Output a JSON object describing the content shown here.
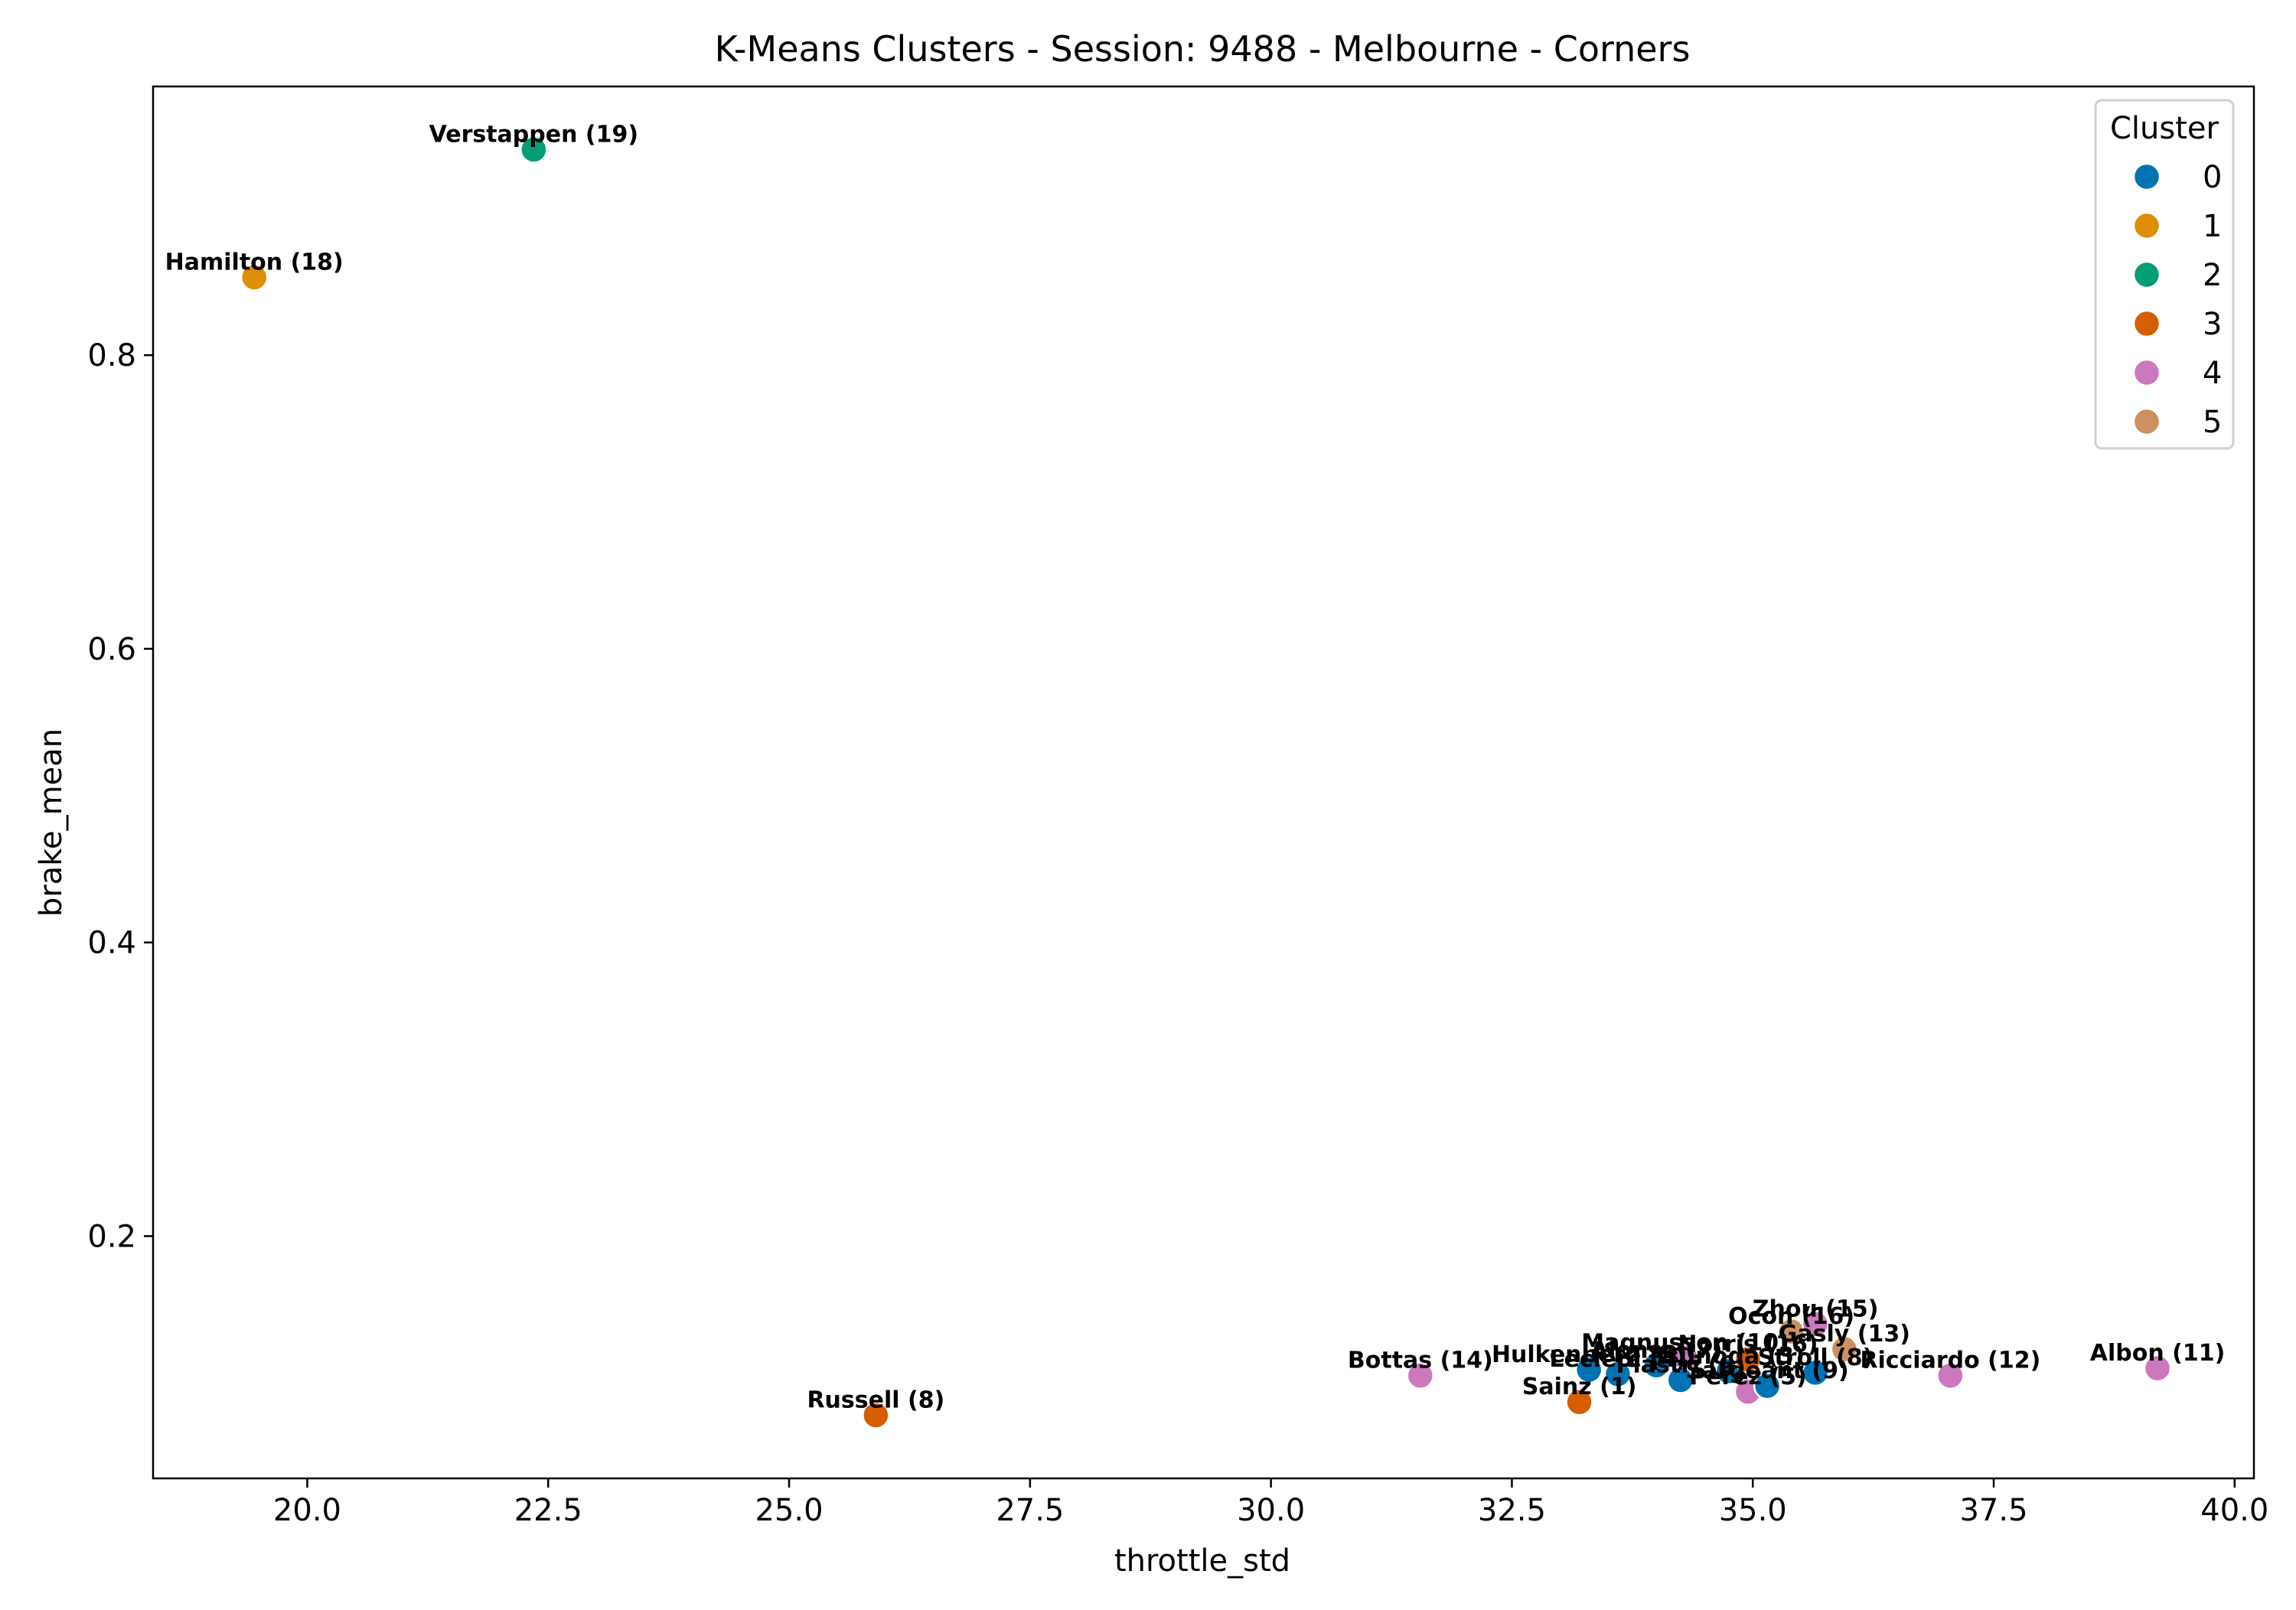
{
  "chart_data": {
    "type": "scatter",
    "title": "K-Means Clusters - Session: 9488 - Melbourne - Corners",
    "xlabel": "throttle_std",
    "ylabel": "brake_mean",
    "xlim": [
      18.4,
      40.2
    ],
    "ylim": [
      0.035,
      0.983
    ],
    "x_ticks": [
      20.0,
      22.5,
      25.0,
      27.5,
      30.0,
      32.5,
      35.0,
      37.5,
      40.0
    ],
    "x_tick_labels": [
      "20.0",
      "22.5",
      "25.0",
      "27.5",
      "30.0",
      "32.5",
      "35.0",
      "37.5",
      "40.0"
    ],
    "y_ticks": [
      0.2,
      0.4,
      0.6,
      0.8
    ],
    "y_tick_labels": [
      "0.2",
      "0.4",
      "0.6",
      "0.8"
    ],
    "grid": false,
    "legend": {
      "title": "Cluster",
      "placement": "top-right",
      "entries": [
        {
          "label": "0",
          "color": "#0173b2"
        },
        {
          "label": "1",
          "color": "#de8f05"
        },
        {
          "label": "2",
          "color": "#029e73"
        },
        {
          "label": "3",
          "color": "#d55e00"
        },
        {
          "label": "4",
          "color": "#cc78bc"
        },
        {
          "label": "5",
          "color": "#ca9161"
        }
      ]
    },
    "points": [
      {
        "label": "Verstappen (19)",
        "x": 22.35,
        "y": 0.94,
        "cluster": 2
      },
      {
        "label": "Hamilton (18)",
        "x": 19.45,
        "y": 0.853,
        "cluster": 1
      },
      {
        "label": "Russell (8)",
        "x": 25.9,
        "y": 0.078,
        "cluster": 3
      },
      {
        "label": "Bottas (14)",
        "x": 31.55,
        "y": 0.105,
        "cluster": 4
      },
      {
        "label": "Sainz (1)",
        "x": 33.2,
        "y": 0.087,
        "cluster": 3
      },
      {
        "label": "Hulkenberg (2)",
        "x": 33.3,
        "y": 0.109,
        "cluster": 0
      },
      {
        "label": "Leclerc (4)",
        "x": 33.6,
        "y": 0.106,
        "cluster": 0
      },
      {
        "label": "Alonso (7)",
        "x": 34.0,
        "y": 0.112,
        "cluster": 0
      },
      {
        "label": "Magnusson (10)",
        "x": 34.3,
        "y": 0.117,
        "cluster": 4
      },
      {
        "label": "Piastri (6)",
        "x": 34.25,
        "y": 0.102,
        "cluster": 0
      },
      {
        "label": "Tsunoda (3)",
        "x": 34.75,
        "y": 0.108,
        "cluster": 0
      },
      {
        "label": "Norris (16)",
        "x": 34.95,
        "y": 0.116,
        "cluster": 3
      },
      {
        "label": "Perez (5)",
        "x": 34.95,
        "y": 0.094,
        "cluster": 4
      },
      {
        "label": "Sargeant (9)",
        "x": 35.15,
        "y": 0.098,
        "cluster": 0
      },
      {
        "label": "Stroll (8)",
        "x": 35.65,
        "y": 0.107,
        "cluster": 0
      },
      {
        "label": "Ocon (16)",
        "x": 35.4,
        "y": 0.135,
        "cluster": 5
      },
      {
        "label": "Zhou (15)",
        "x": 35.65,
        "y": 0.14,
        "cluster": 4
      },
      {
        "label": "Gasly (13)",
        "x": 35.95,
        "y": 0.123,
        "cluster": 5
      },
      {
        "label": "Ricciardo (12)",
        "x": 37.05,
        "y": 0.105,
        "cluster": 4
      },
      {
        "label": "Albon (11)",
        "x": 39.2,
        "y": 0.11,
        "cluster": 4
      }
    ]
  }
}
